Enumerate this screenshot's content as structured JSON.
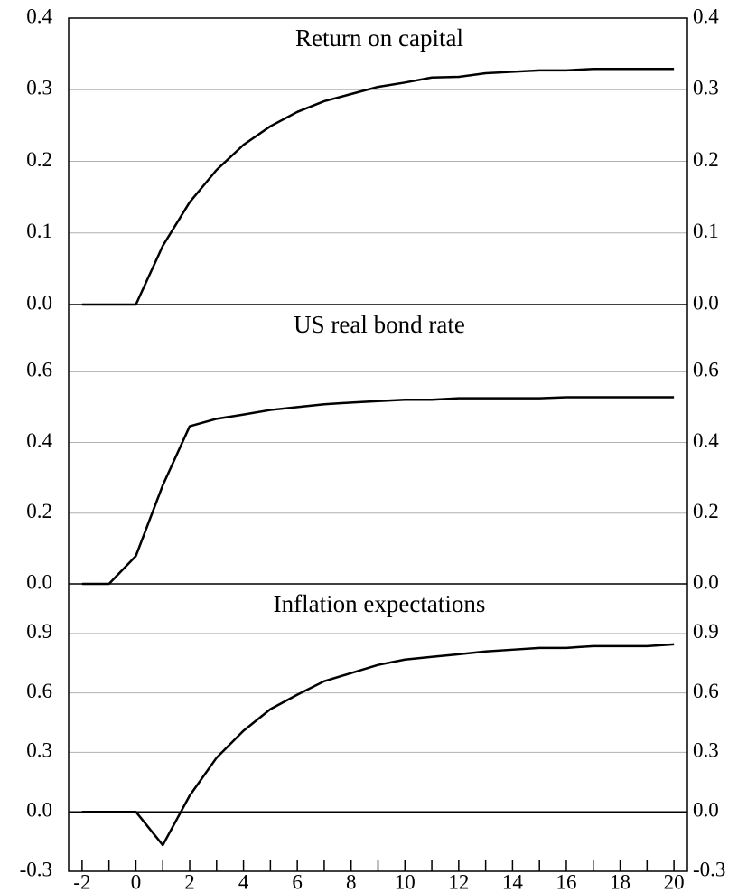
{
  "chart_data": [
    {
      "type": "line",
      "title": "Return on capital",
      "color": "#000000",
      "x": [
        -2,
        -1,
        0,
        1,
        2,
        3,
        4,
        5,
        6,
        7,
        8,
        9,
        10,
        11,
        12,
        13,
        14,
        15,
        16,
        17,
        18,
        19,
        20
      ],
      "values": [
        0,
        0,
        0,
        0.082,
        0.143,
        0.188,
        0.223,
        0.249,
        0.269,
        0.284,
        0.294,
        0.304,
        0.31,
        0.317,
        0.318,
        0.323,
        0.325,
        0.327,
        0.327,
        0.329,
        0.329,
        0.329,
        0.329
      ],
      "xlim": [
        -2.5,
        20.5
      ],
      "ylim": [
        0,
        0.4
      ],
      "yticks": [
        {
          "value": 0,
          "label": "0.0"
        },
        0.1,
        0.2,
        0.3,
        0.4
      ],
      "grid": true
    },
    {
      "type": "line",
      "title": "US real bond rate",
      "color": "#000000",
      "x": [
        -2,
        -1,
        0,
        1,
        2,
        3,
        4,
        5,
        6,
        7,
        8,
        9,
        10,
        11,
        12,
        13,
        14,
        15,
        16,
        17,
        18,
        19,
        20
      ],
      "values": [
        0,
        0,
        0.079,
        0.279,
        0.446,
        0.467,
        0.479,
        0.492,
        0.5,
        0.508,
        0.513,
        0.517,
        0.521,
        0.521,
        0.525,
        0.525,
        0.525,
        0.525,
        0.528,
        0.528,
        0.528,
        0.528,
        0.528
      ],
      "xlim": [
        -2.5,
        20.5
      ],
      "ylim": [
        0,
        0.79
      ],
      "yticks": [
        {
          "value": 0,
          "label": "0.0"
        },
        0.2,
        0.4,
        0.6
      ],
      "grid": true
    },
    {
      "type": "line",
      "title": "Inflation expectations",
      "color": "#000000",
      "x": [
        -2,
        -1,
        0,
        1,
        2,
        3,
        4,
        5,
        6,
        7,
        8,
        9,
        10,
        11,
        12,
        13,
        14,
        15,
        16,
        17,
        18,
        19,
        20
      ],
      "values": [
        0,
        0,
        0,
        -0.168,
        0.082,
        0.273,
        0.409,
        0.518,
        0.591,
        0.659,
        0.7,
        0.741,
        0.768,
        0.782,
        0.795,
        0.809,
        0.818,
        0.827,
        0.827,
        0.836,
        0.836,
        0.836,
        0.845
      ],
      "xlim": [
        -2.5,
        20.5
      ],
      "ylim": [
        -0.3,
        1.15
      ],
      "yticks": [
        -0.3,
        {
          "value": 0,
          "label": "0.0"
        },
        0.3,
        0.6,
        0.9
      ],
      "grid": true,
      "zero_line": true,
      "xticks": [
        -2,
        0,
        2,
        4,
        6,
        8,
        10,
        12,
        14,
        16,
        18,
        20
      ]
    }
  ]
}
